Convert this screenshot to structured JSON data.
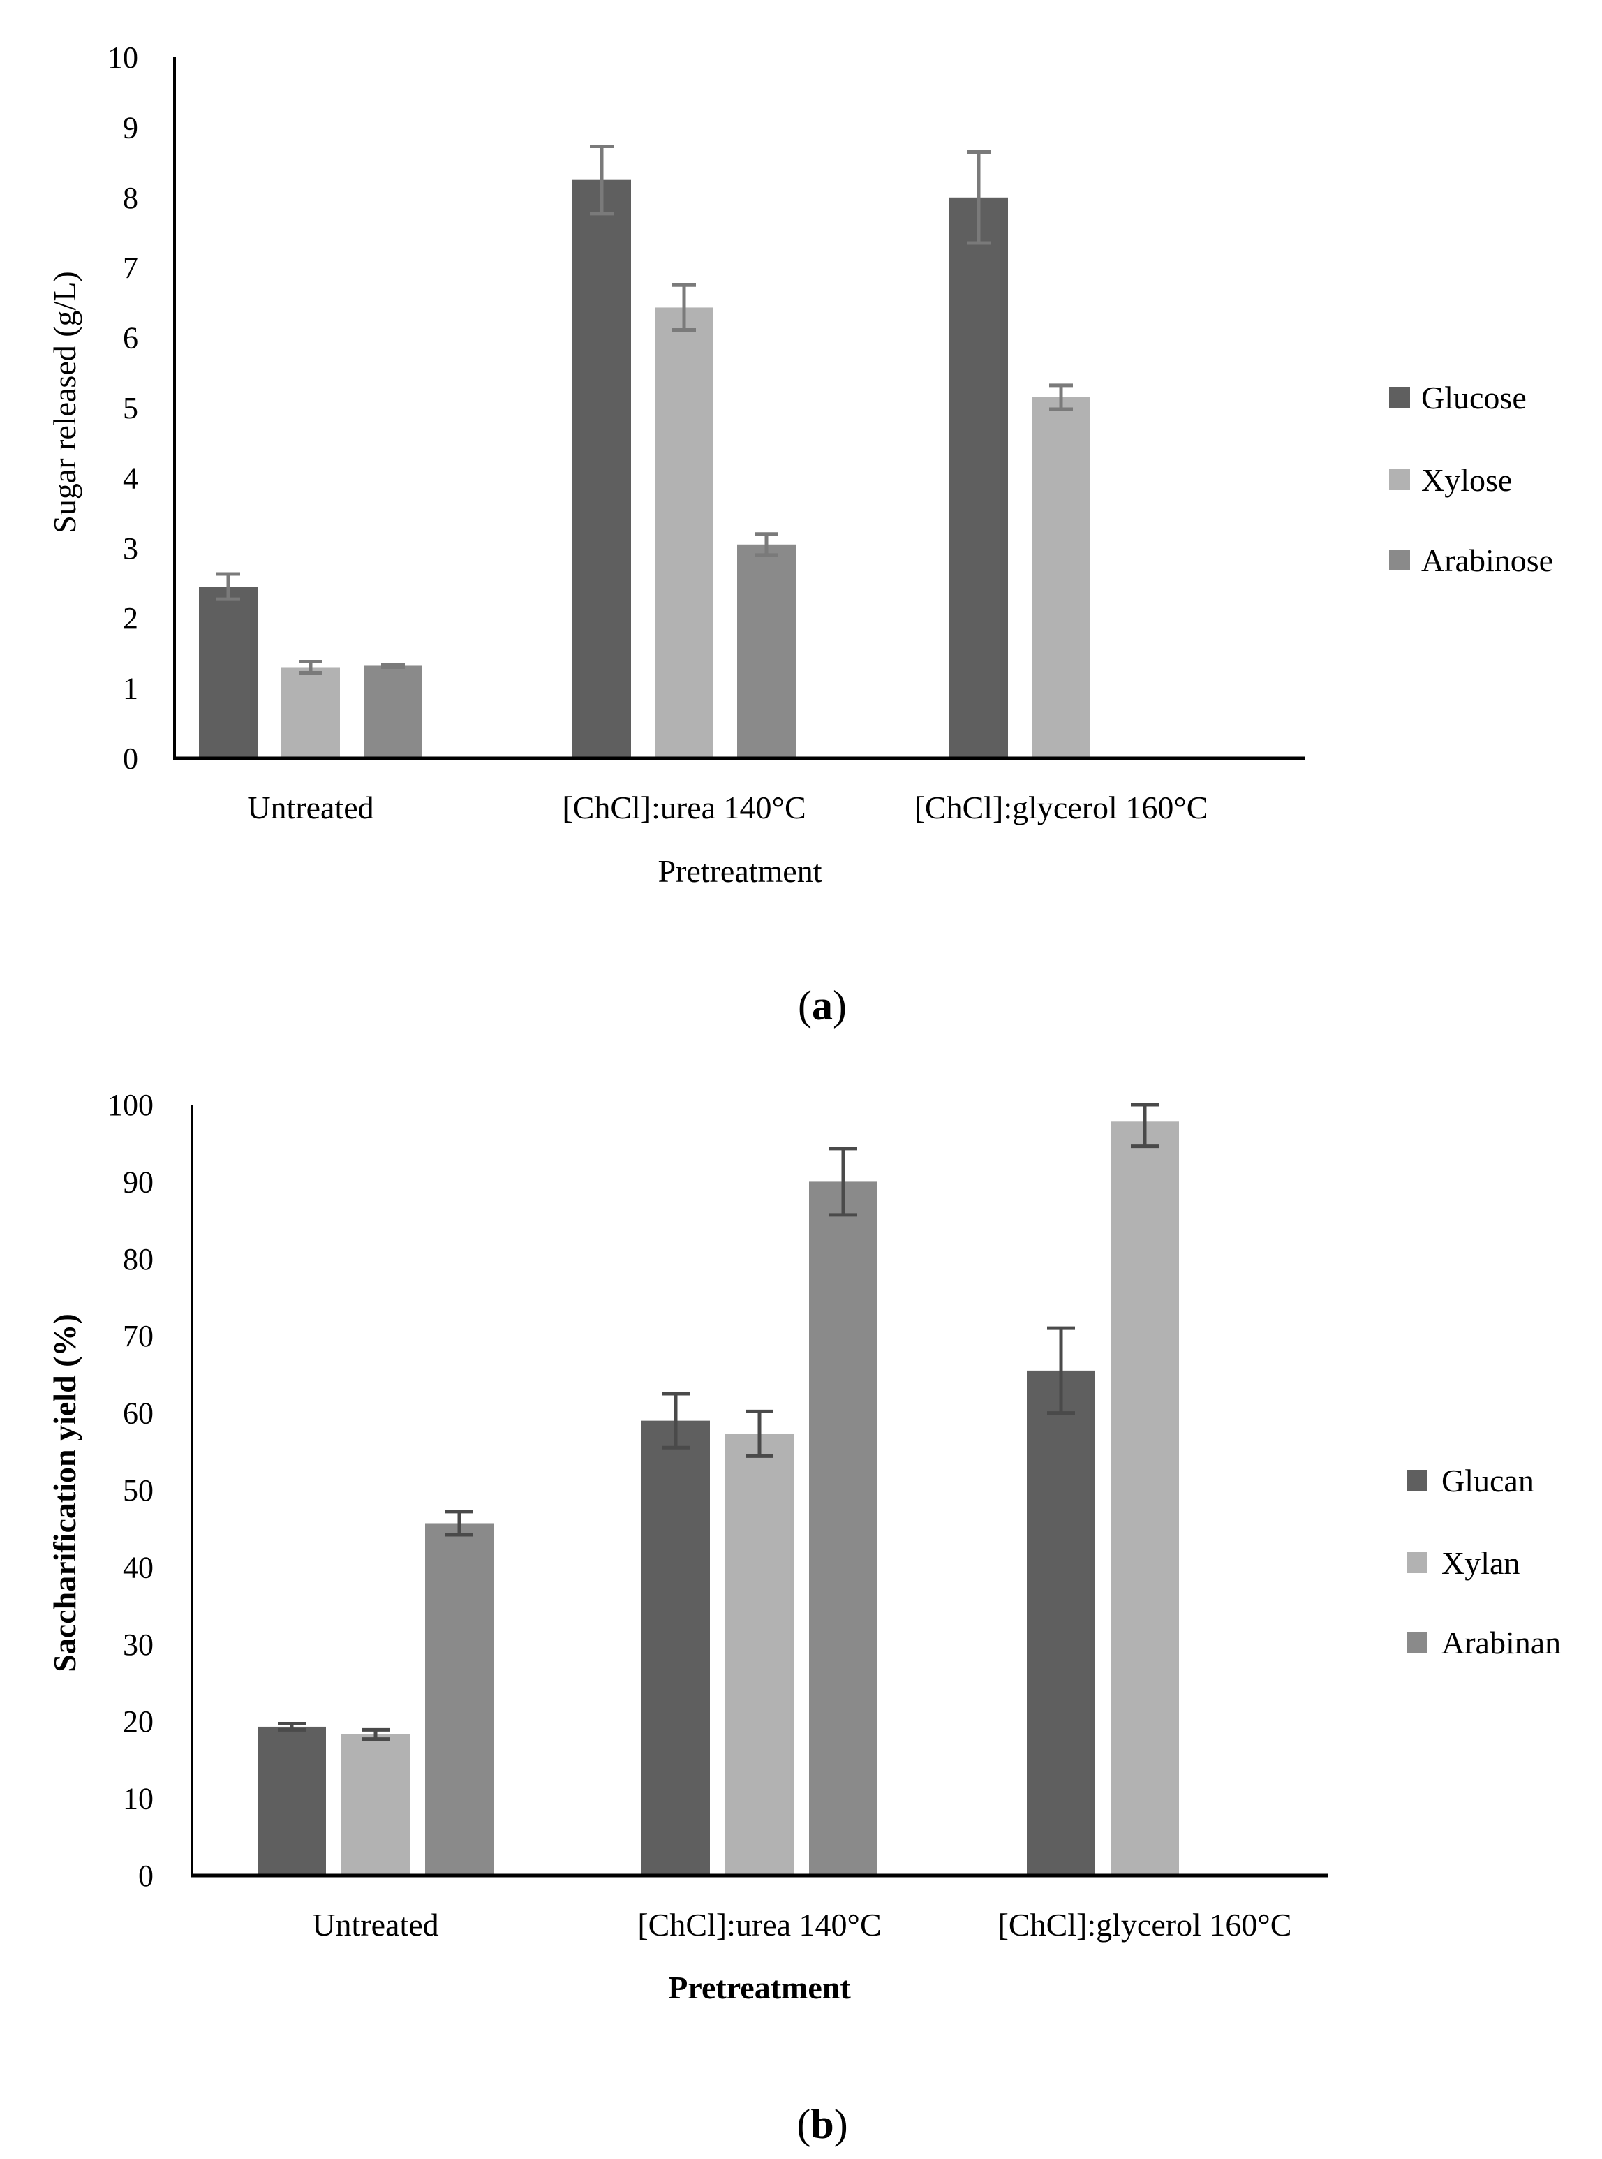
{
  "chart_data": [
    {
      "type": "bar",
      "panel_label": "a",
      "categories": [
        "Untreated",
        "[ChCl]:urea 140°C",
        "[ChCl]:glycerol 160°C"
      ],
      "series": [
        {
          "name": "Glucose",
          "color": "#5f5f5f",
          "values": [
            2.45,
            8.25,
            8.0
          ],
          "errors": [
            0.18,
            0.48,
            0.65
          ]
        },
        {
          "name": "Xylose",
          "color": "#b2b2b2",
          "values": [
            1.3,
            6.43,
            5.15
          ],
          "errors": [
            0.08,
            0.32,
            0.17
          ]
        },
        {
          "name": "Arabinose",
          "color": "#8a8a8a",
          "values": [
            1.32,
            3.05,
            null
          ],
          "errors": [
            0.02,
            0.15,
            null
          ]
        }
      ],
      "title": "",
      "xlabel": "Pretreatment",
      "ylabel": "Sugar released (g/L)",
      "ylim": [
        0,
        10
      ],
      "yticks": [
        "0",
        "1",
        "2",
        "3",
        "4",
        "5",
        "6",
        "7",
        "8",
        "9",
        "10"
      ],
      "grid": false,
      "legend_position": "right"
    },
    {
      "type": "bar",
      "panel_label": "b",
      "categories": [
        "Untreated",
        "[ChCl]:urea 140°C",
        "[ChCl]:glycerol 160°C"
      ],
      "series": [
        {
          "name": "Glucan",
          "color": "#5f5f5f",
          "values": [
            19.3,
            59.0,
            65.5
          ],
          "errors": [
            0.4,
            3.5,
            5.5
          ]
        },
        {
          "name": "Xylan",
          "color": "#b2b2b2",
          "values": [
            18.3,
            57.3,
            97.8
          ],
          "errors": [
            0.6,
            2.9,
            3.2
          ]
        },
        {
          "name": "Arabinan",
          "color": "#8a8a8a",
          "values": [
            45.7,
            90.0,
            null
          ],
          "errors": [
            1.5,
            4.3,
            null
          ]
        }
      ],
      "title": "",
      "xlabel": "Pretreatment",
      "ylabel": "Saccharification yield (%)",
      "ylim": [
        0,
        100
      ],
      "yticks": [
        "0",
        "10",
        "20",
        "30",
        "40",
        "50",
        "60",
        "70",
        "80",
        "90",
        "100"
      ],
      "grid": false,
      "legend_position": "right"
    }
  ]
}
